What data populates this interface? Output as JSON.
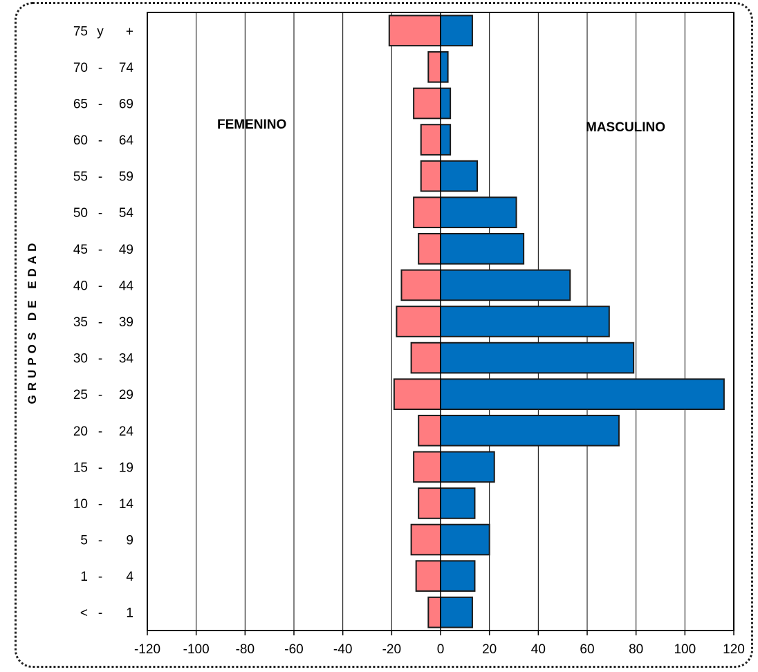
{
  "chart_data": {
    "type": "bar",
    "orientation": "horizontal",
    "title": "",
    "ylabel": "GRUPOS DE EDAD",
    "xlabel": "",
    "categories": [
      "< - 1",
      "1 - 4",
      "5 - 9",
      "10 - 14",
      "15 - 19",
      "20 - 24",
      "25 - 29",
      "30 - 34",
      "35 - 39",
      "40 - 44",
      "45 - 49",
      "50 - 54",
      "55 - 59",
      "60 - 64",
      "65 - 69",
      "70 - 74",
      "75 y +"
    ],
    "series": [
      {
        "name": "FEMENINO",
        "color": "#ff7c80",
        "values": [
          -5,
          -10,
          -12,
          -9,
          -11,
          -9,
          -19,
          -12,
          -18,
          -16,
          -9,
          -11,
          -8,
          -8,
          -11,
          -5,
          -21
        ]
      },
      {
        "name": "MASCULINO",
        "color": "#0070c0",
        "values": [
          13,
          14,
          20,
          14,
          22,
          73,
          116,
          79,
          69,
          53,
          34,
          31,
          15,
          4,
          4,
          3,
          13
        ]
      }
    ],
    "xlim": [
      -120,
      120
    ],
    "xticks": [
      -120,
      -100,
      -80,
      -60,
      -40,
      -20,
      0,
      20,
      40,
      60,
      80,
      100,
      120
    ],
    "grid": "vertical",
    "annotations": [
      "FEMENINO",
      "MASCULINO"
    ]
  }
}
